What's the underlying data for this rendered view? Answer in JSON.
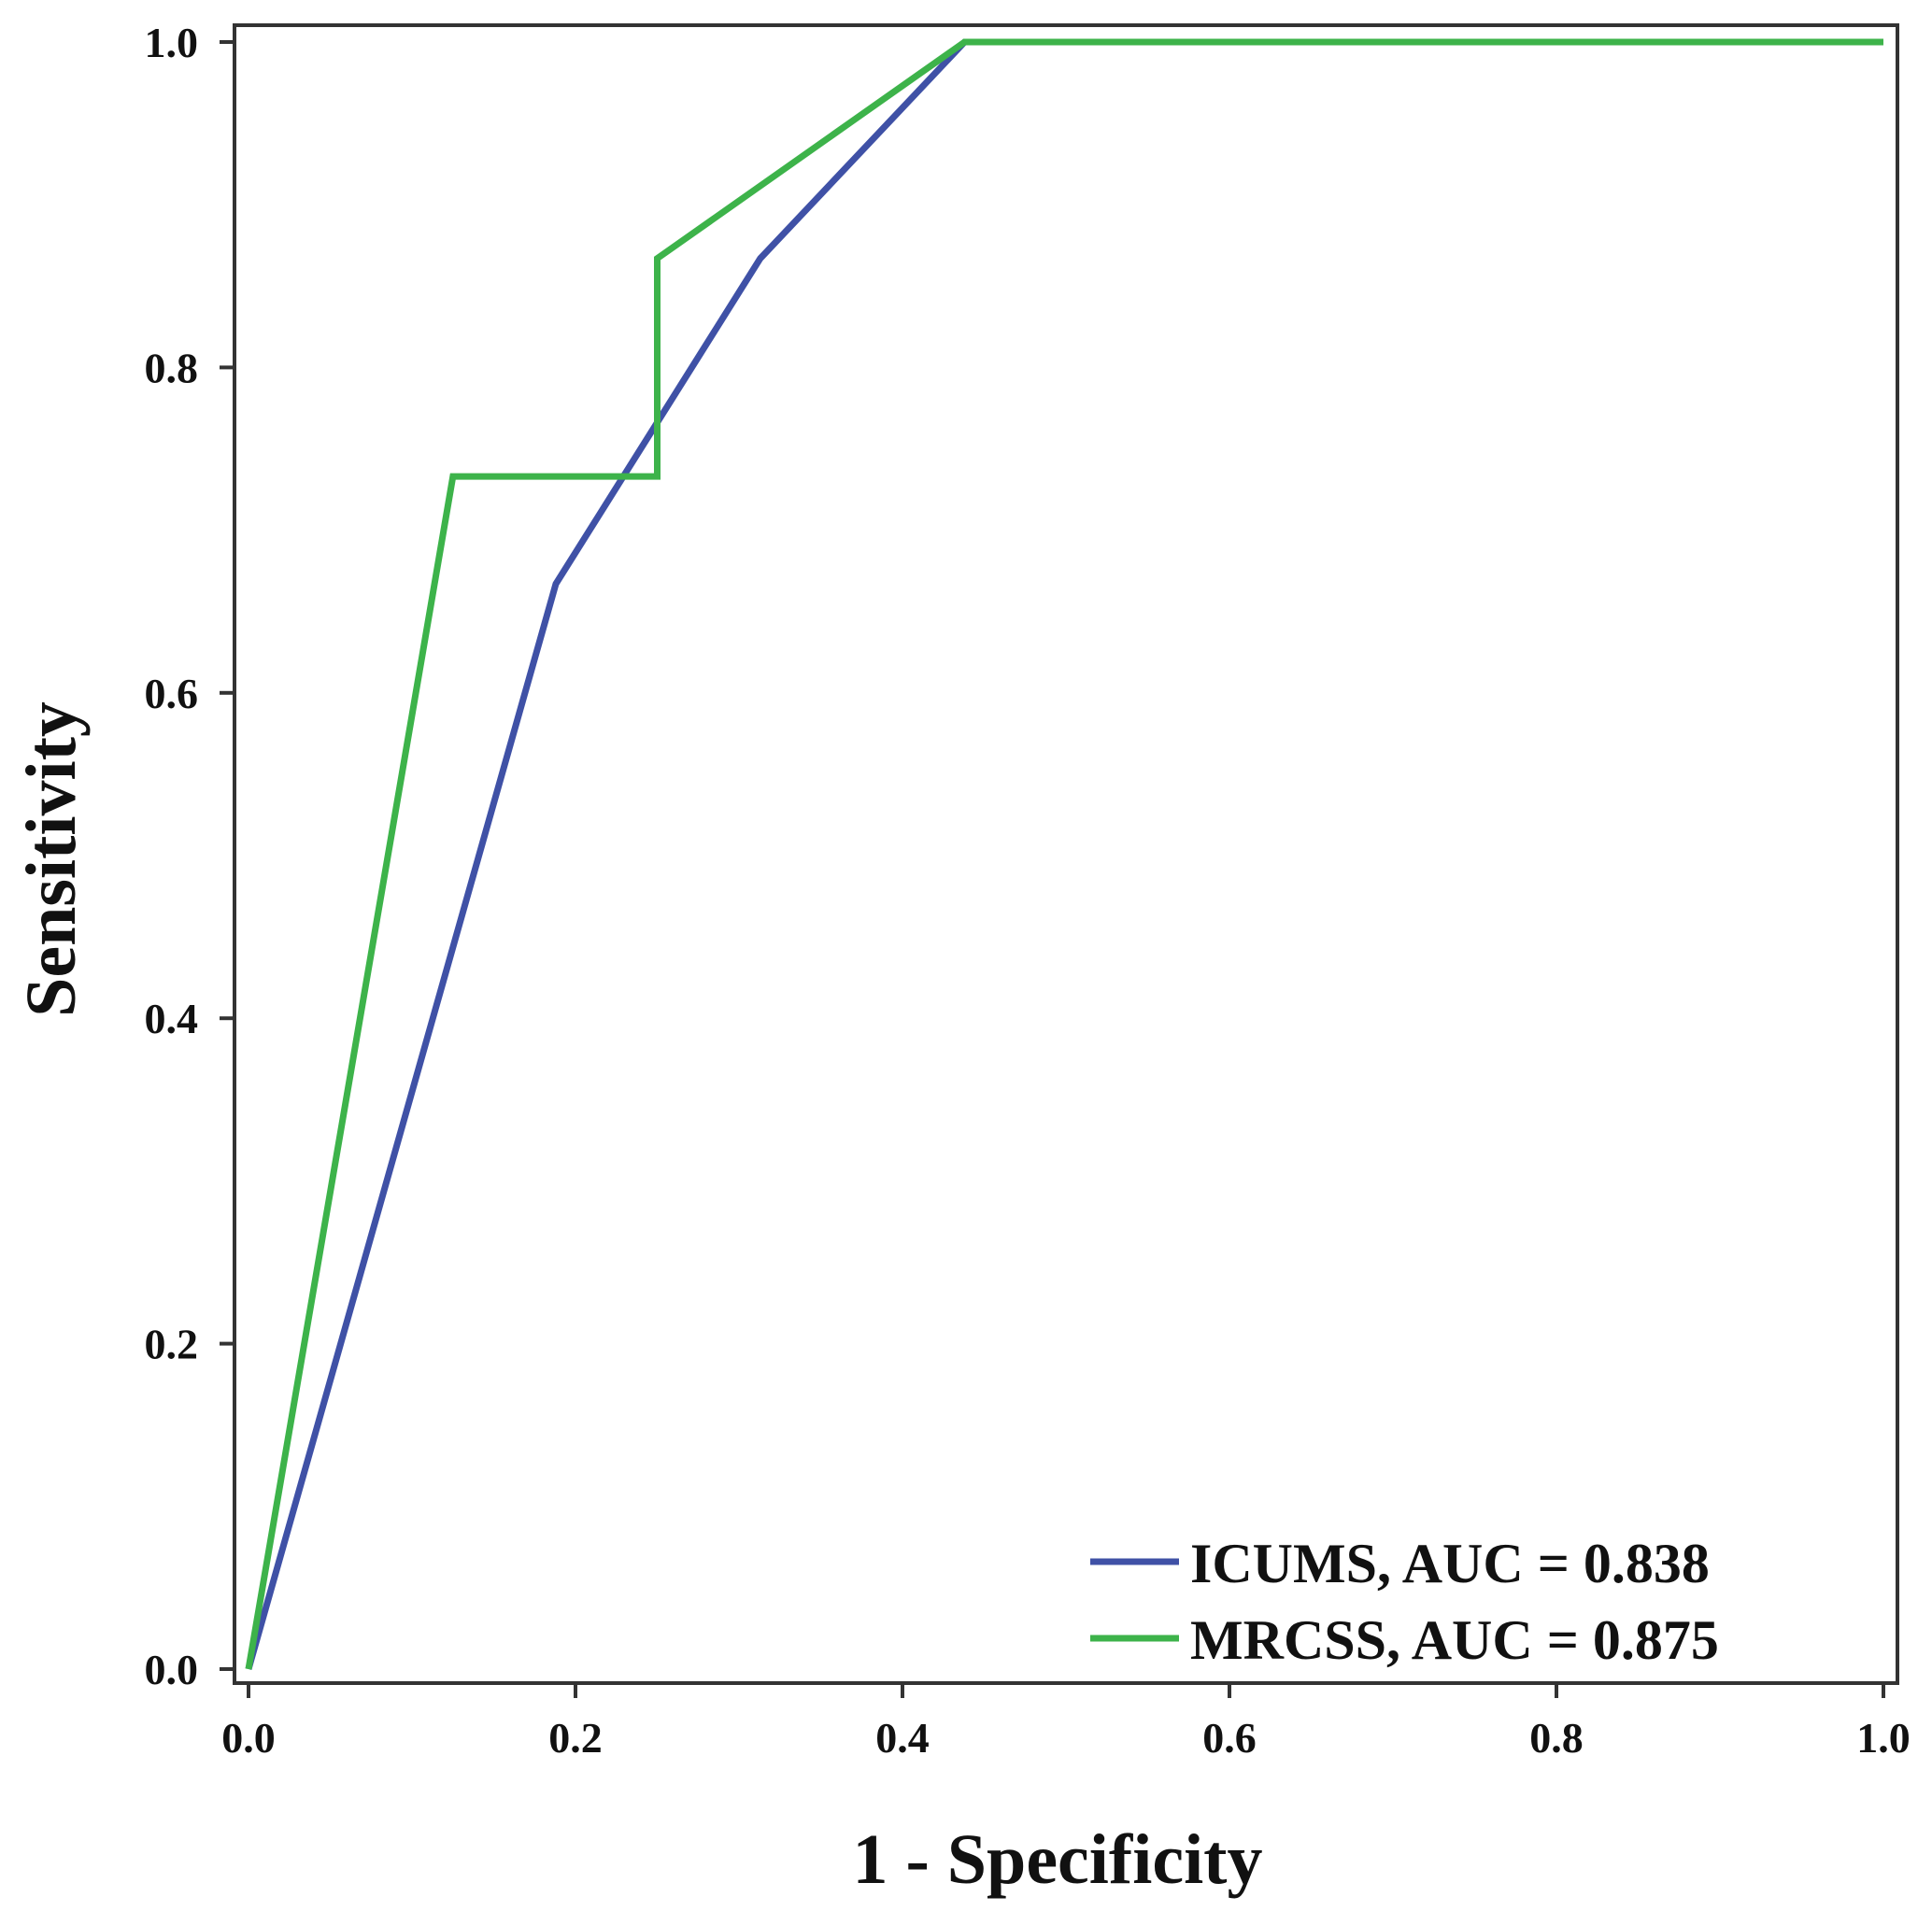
{
  "chart_data": {
    "type": "line",
    "title": "",
    "xlabel": "1 - Specificity",
    "ylabel": "Sensitivity",
    "xlim": [
      0,
      1
    ],
    "ylim": [
      0,
      1
    ],
    "x_ticks": [
      0.0,
      0.2,
      0.4,
      0.6,
      0.8,
      1.0
    ],
    "x_tick_labels": [
      "0.0",
      "0.2",
      "0.4",
      "0.6",
      "0.8",
      "1.0"
    ],
    "y_ticks": [
      0.0,
      0.2,
      0.4,
      0.6,
      0.8,
      1.0
    ],
    "y_tick_labels": [
      "0.0",
      "0.2",
      "0.4",
      "0.6",
      "0.8",
      "1.0"
    ],
    "grid": false,
    "legend_position": "bottom-right",
    "series": [
      {
        "name": "ICUMS, AUC = 0.838",
        "color": "#3f51a6",
        "x": [
          0.0,
          0.188,
          0.313,
          0.438,
          1.0
        ],
        "y": [
          0.0,
          0.667,
          0.867,
          1.0,
          1.0
        ]
      },
      {
        "name": "MRCSS, AUC = 0.875",
        "color": "#3db34a",
        "x": [
          0.0,
          0.125,
          0.25,
          0.25,
          0.438,
          1.0
        ],
        "y": [
          0.0,
          0.733,
          0.733,
          0.867,
          1.0,
          1.0
        ]
      }
    ]
  }
}
